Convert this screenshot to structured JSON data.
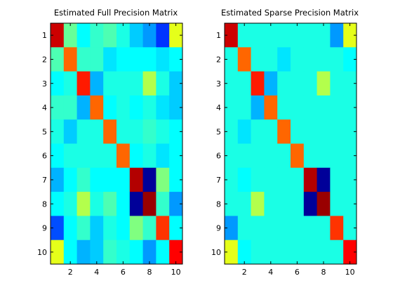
{
  "chart_data": [
    {
      "type": "heatmap",
      "title": "Estimated Full Precision Matrix",
      "xlabel": "",
      "ylabel": "",
      "xticks": [
        2,
        4,
        6,
        8,
        10
      ],
      "yticks": [
        1,
        2,
        3,
        4,
        5,
        6,
        7,
        8,
        9,
        10
      ],
      "rows": 10,
      "cols": 10,
      "colormap": "jet",
      "clim": [
        -1,
        1
      ],
      "values": [
        [
          0.85,
          -0.05,
          -0.25,
          -0.15,
          -0.1,
          -0.2,
          -0.35,
          -0.45,
          -0.65,
          0.2
        ],
        [
          -0.1,
          0.55,
          -0.15,
          -0.15,
          -0.3,
          -0.25,
          -0.25,
          -0.25,
          -0.3,
          -0.25
        ],
        [
          -0.25,
          -0.2,
          0.7,
          -0.4,
          -0.2,
          -0.2,
          -0.2,
          0.1,
          -0.2,
          -0.35
        ],
        [
          -0.15,
          -0.15,
          -0.4,
          0.55,
          -0.25,
          -0.2,
          -0.25,
          -0.2,
          -0.3,
          -0.35
        ],
        [
          -0.2,
          -0.35,
          -0.2,
          -0.2,
          0.55,
          -0.2,
          -0.2,
          -0.15,
          -0.2,
          -0.25
        ],
        [
          -0.25,
          -0.2,
          -0.2,
          -0.2,
          -0.2,
          0.55,
          -0.25,
          -0.2,
          -0.3,
          -0.25
        ],
        [
          -0.4,
          -0.25,
          -0.15,
          -0.25,
          -0.25,
          -0.25,
          0.9,
          -0.95,
          0.0,
          -0.25
        ],
        [
          -0.25,
          -0.2,
          0.1,
          -0.2,
          -0.1,
          -0.25,
          -0.95,
          0.95,
          -0.15,
          -0.45
        ],
        [
          -0.6,
          -0.25,
          -0.15,
          -0.35,
          -0.2,
          -0.25,
          0.0,
          -0.15,
          0.65,
          -0.25
        ],
        [
          0.2,
          -0.25,
          -0.4,
          -0.35,
          -0.15,
          -0.2,
          -0.25,
          -0.45,
          -0.25,
          0.75
        ]
      ]
    },
    {
      "type": "heatmap",
      "title": "Estimated Sparse Precision Matrix",
      "xlabel": "",
      "ylabel": "",
      "xticks": [
        2,
        4,
        6,
        8,
        10
      ],
      "yticks": [
        1,
        2,
        3,
        4,
        5,
        6,
        7,
        8,
        9,
        10
      ],
      "rows": 10,
      "cols": 10,
      "colormap": "jet",
      "clim": [
        -1,
        1
      ],
      "values": [
        [
          0.85,
          -0.2,
          -0.2,
          -0.2,
          -0.2,
          -0.2,
          -0.2,
          -0.2,
          -0.45,
          0.2
        ],
        [
          -0.2,
          0.55,
          -0.2,
          -0.2,
          -0.3,
          -0.2,
          -0.2,
          -0.2,
          -0.2,
          -0.25
        ],
        [
          -0.2,
          -0.2,
          0.7,
          -0.4,
          -0.2,
          -0.2,
          -0.2,
          0.1,
          -0.2,
          -0.2
        ],
        [
          -0.2,
          -0.2,
          -0.4,
          0.55,
          -0.2,
          -0.2,
          -0.2,
          -0.2,
          -0.2,
          -0.2
        ],
        [
          -0.2,
          -0.3,
          -0.2,
          -0.2,
          0.55,
          -0.2,
          -0.2,
          -0.2,
          -0.2,
          -0.2
        ],
        [
          -0.2,
          -0.2,
          -0.2,
          -0.2,
          -0.2,
          0.55,
          -0.2,
          -0.2,
          -0.2,
          -0.2
        ],
        [
          -0.2,
          -0.25,
          -0.2,
          -0.2,
          -0.2,
          -0.2,
          0.9,
          -0.95,
          -0.2,
          -0.2
        ],
        [
          -0.2,
          -0.2,
          0.1,
          -0.2,
          -0.2,
          -0.2,
          -0.95,
          0.95,
          -0.2,
          -0.2
        ],
        [
          -0.45,
          -0.2,
          -0.2,
          -0.2,
          -0.2,
          -0.2,
          -0.2,
          -0.2,
          0.65,
          -0.2
        ],
        [
          0.2,
          -0.25,
          -0.2,
          -0.2,
          -0.2,
          -0.2,
          -0.2,
          -0.2,
          -0.2,
          0.75
        ]
      ]
    }
  ]
}
